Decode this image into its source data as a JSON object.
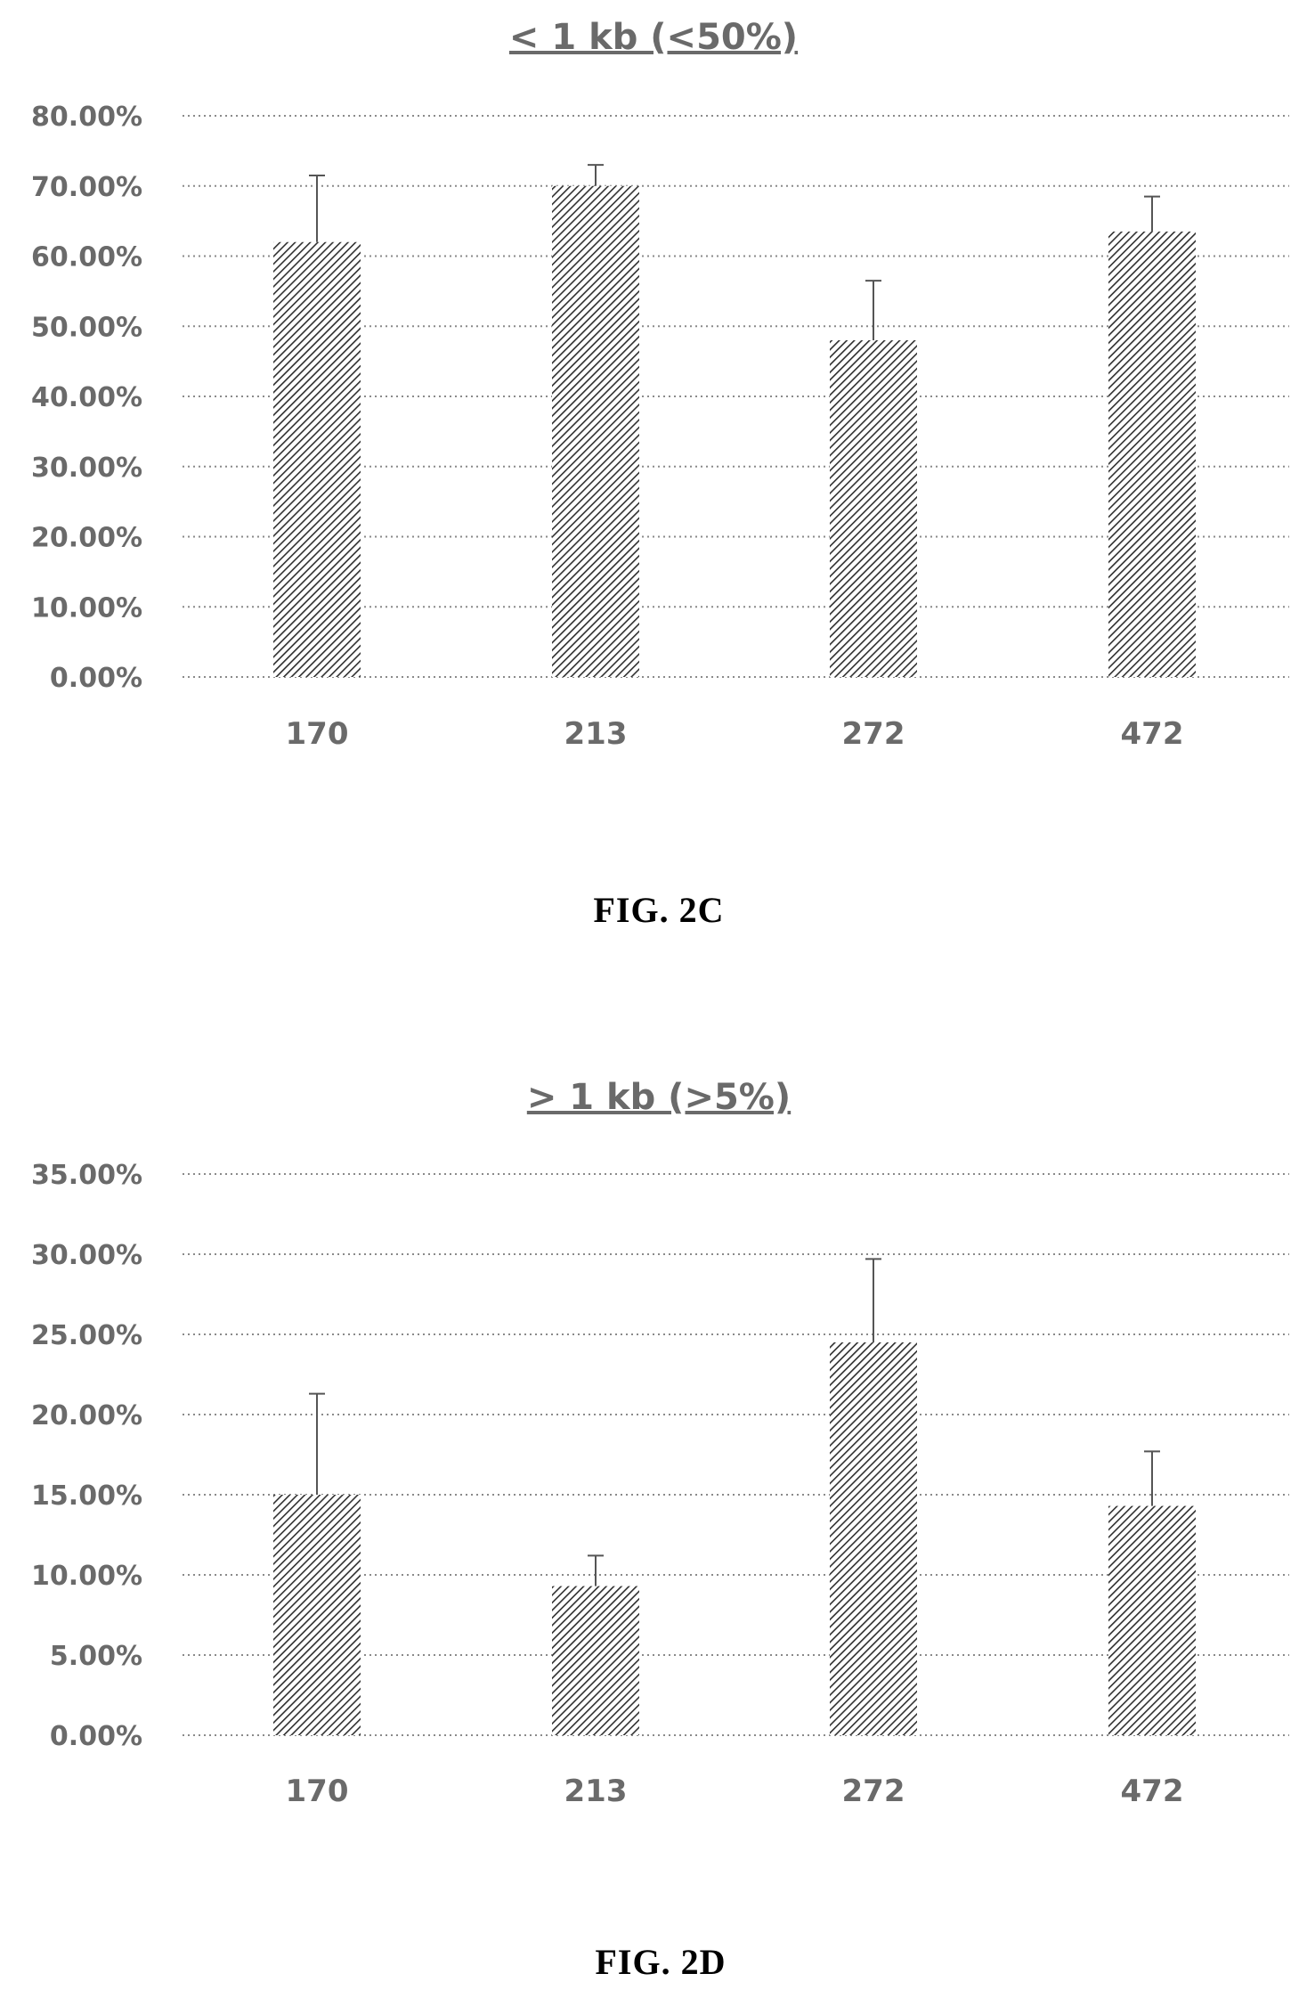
{
  "charts": [
    {
      "title": "< 1 kb (<50%)",
      "caption": "FIG.  2C",
      "chart_data": {
        "type": "bar",
        "title": "< 1 kb (<50%)",
        "categories": [
          "170",
          "213",
          "272",
          "472"
        ],
        "values": [
          62.0,
          70.0,
          48.0,
          63.5
        ],
        "errors": [
          9.5,
          3.0,
          8.5,
          5.0
        ],
        "yticks": [
          "0.00%",
          "10.00%",
          "20.00%",
          "30.00%",
          "40.00%",
          "50.00%",
          "60.00%",
          "70.00%",
          "80.00%"
        ],
        "ylim": [
          0,
          80
        ],
        "ystep": 10,
        "grid": true,
        "xlabel": "",
        "ylabel": ""
      }
    },
    {
      "title": "> 1 kb (>5%)",
      "caption": "FIG.  2D",
      "chart_data": {
        "type": "bar",
        "title": "> 1 kb (>5%)",
        "categories": [
          "170",
          "213",
          "272",
          "472"
        ],
        "values": [
          15.0,
          9.3,
          24.5,
          14.3
        ],
        "errors": [
          6.3,
          1.9,
          5.2,
          3.4
        ],
        "yticks": [
          "0.00%",
          "5.00%",
          "10.00%",
          "15.00%",
          "20.00%",
          "25.00%",
          "30.00%",
          "35.00%"
        ],
        "ylim": [
          0,
          35
        ],
        "ystep": 5,
        "grid": true,
        "xlabel": "",
        "ylabel": ""
      }
    }
  ],
  "colors": {
    "bar_stripe": "#3a3a3a",
    "bar_bg": "#ffffff",
    "text": "#6a6a6a",
    "caption": "#000000"
  }
}
